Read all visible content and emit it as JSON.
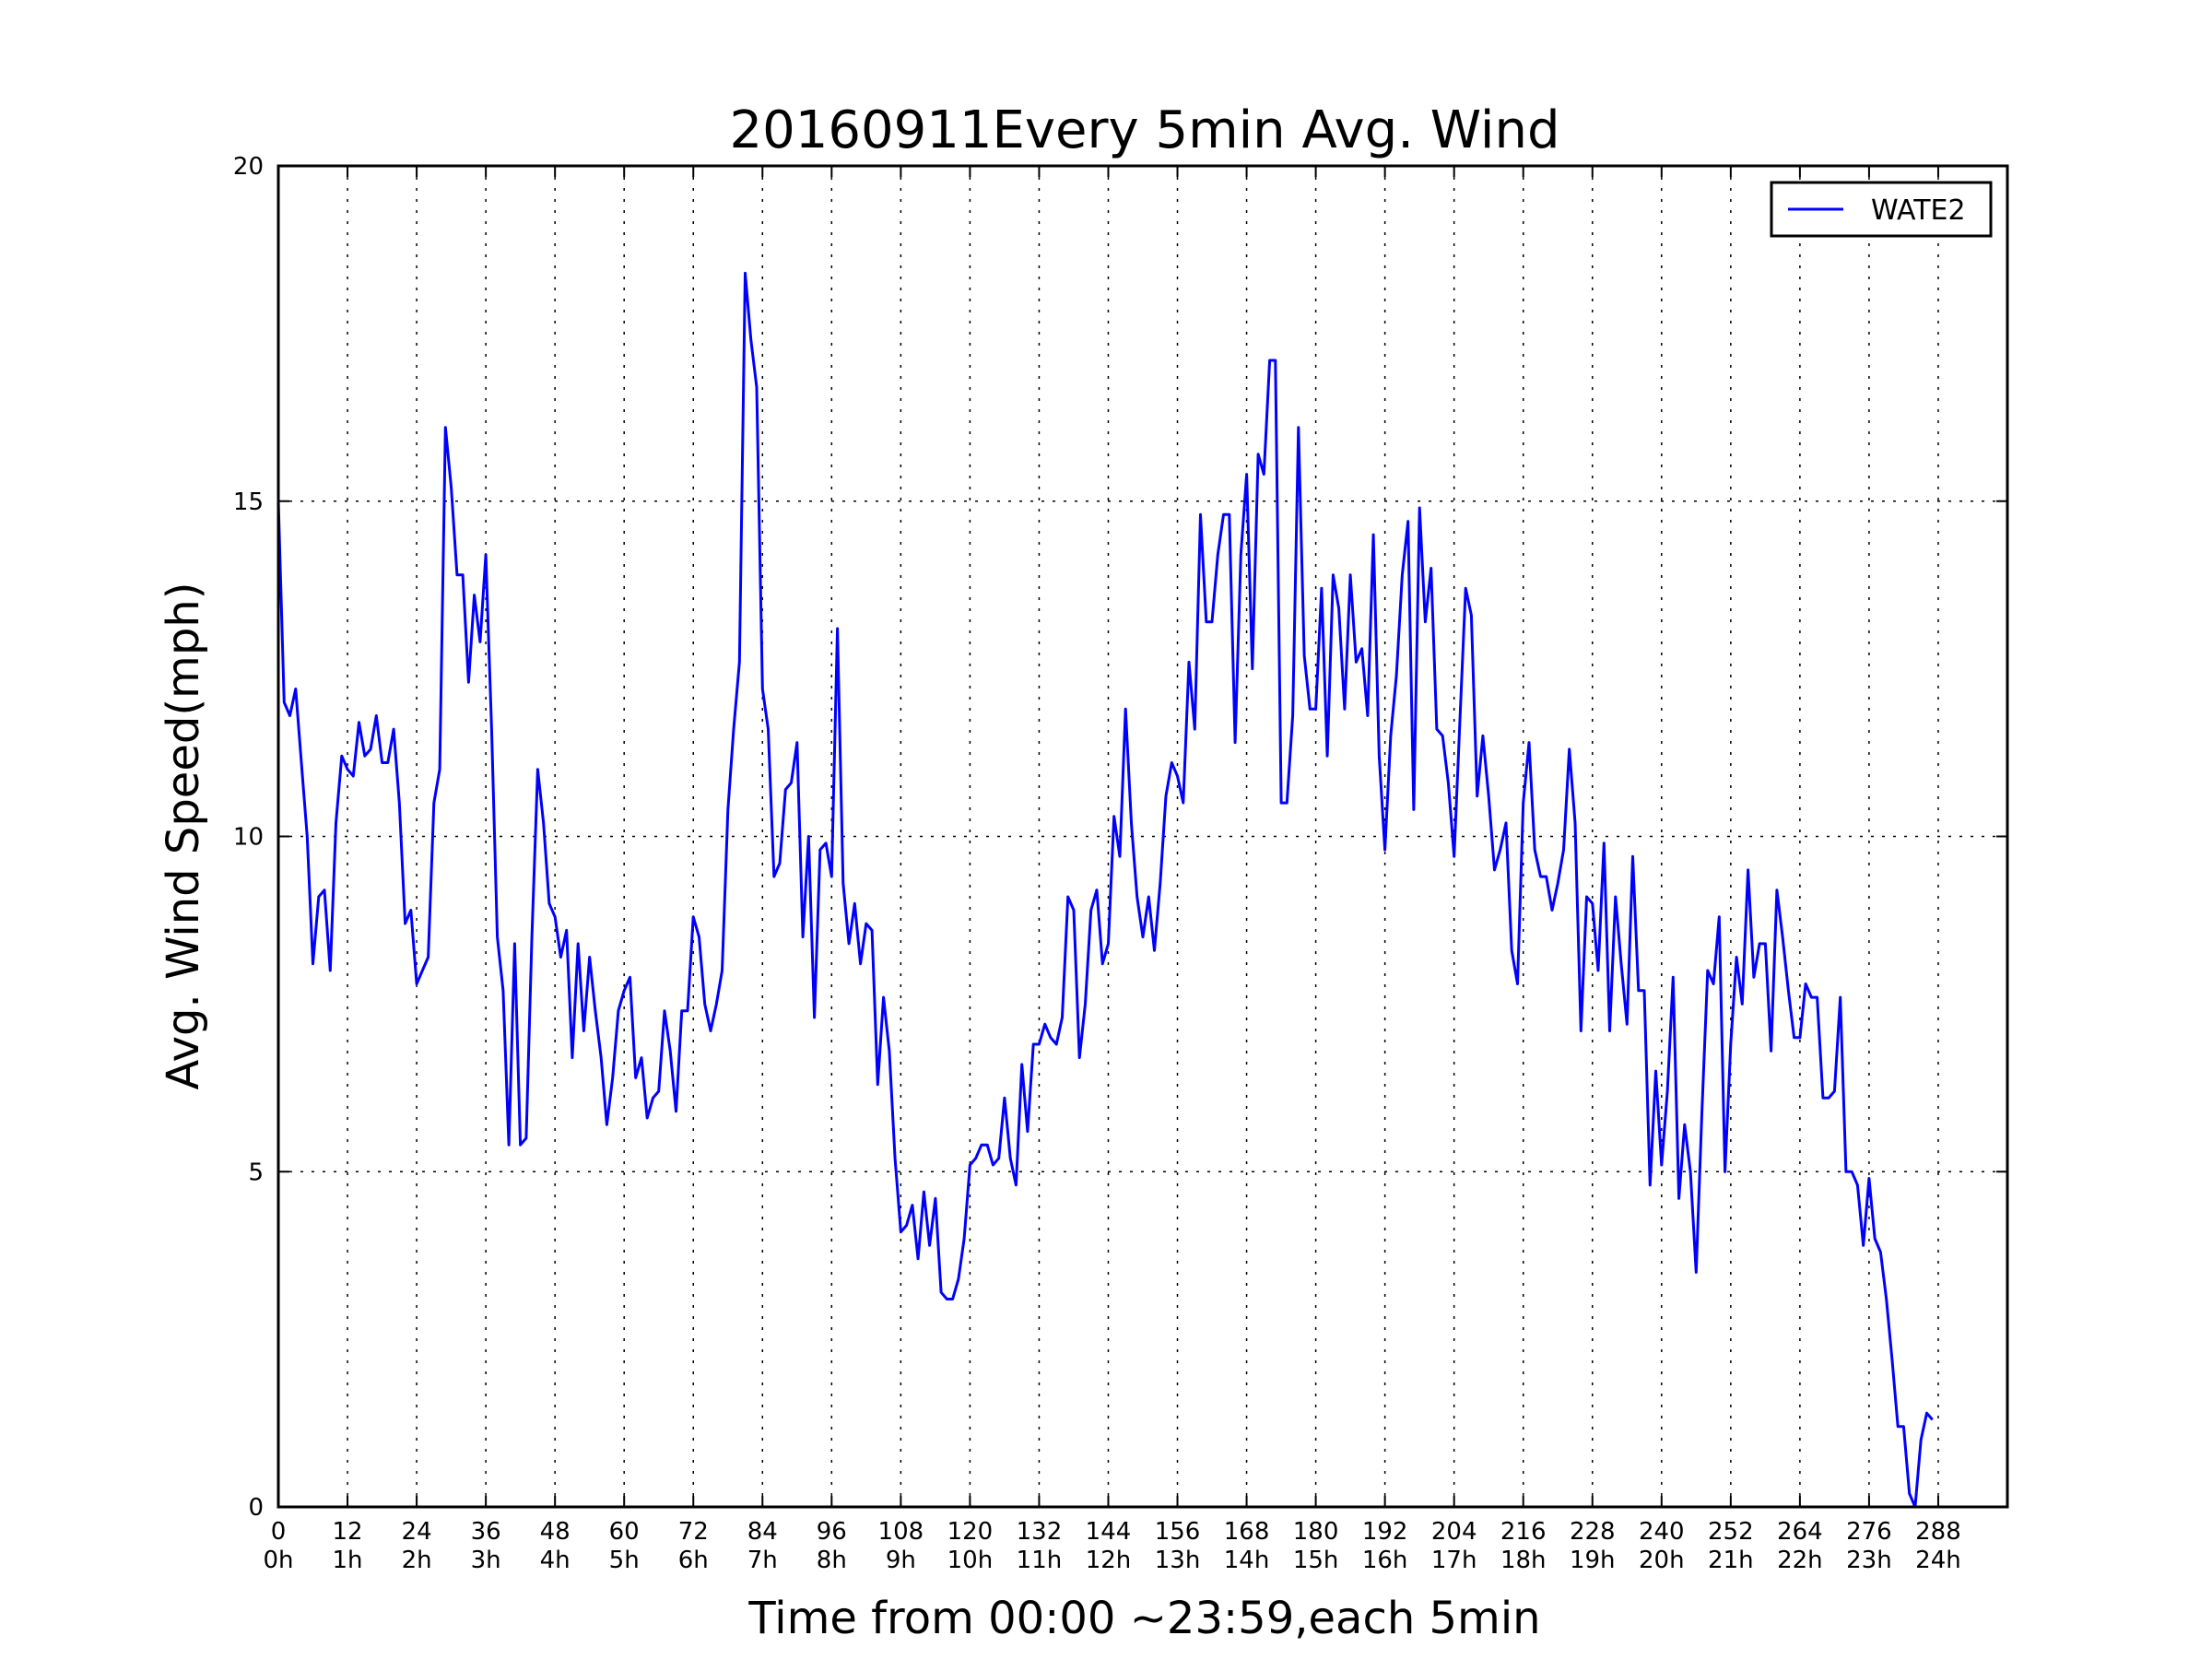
{
  "chart_data": {
    "type": "line",
    "title": "20160911Every 5min Avg. Wind",
    "xlabel": "Time from 00:00 ~23:59,each 5min",
    "ylabel": "Avg. Wind Speed(mph)",
    "xlim": [
      0,
      300
    ],
    "ylim": [
      0,
      20
    ],
    "grid": true,
    "legend_position": "top-right",
    "x_ticks": [
      0,
      12,
      24,
      36,
      48,
      60,
      72,
      84,
      96,
      108,
      120,
      132,
      144,
      156,
      168,
      180,
      192,
      204,
      216,
      228,
      240,
      252,
      264,
      276,
      288
    ],
    "x_tick_labels": [
      "0",
      "12",
      "24",
      "36",
      "48",
      "60",
      "72",
      "84",
      "96",
      "108",
      "120",
      "132",
      "144",
      "156",
      "168",
      "180",
      "192",
      "204",
      "216",
      "228",
      "240",
      "252",
      "264",
      "276",
      "288"
    ],
    "x_tick_sublabels": [
      "0h",
      "1h",
      "2h",
      "3h",
      "4h",
      "5h",
      "6h",
      "7h",
      "8h",
      "9h",
      "10h",
      "11h",
      "12h",
      "13h",
      "14h",
      "15h",
      "16h",
      "17h",
      "18h",
      "19h",
      "20h",
      "21h",
      "22h",
      "23h",
      "24h"
    ],
    "y_ticks": [
      0,
      5,
      10,
      15,
      20
    ],
    "y_tick_labels": [
      "0",
      "5",
      "10",
      "15",
      "20"
    ],
    "series": [
      {
        "name": "WATE2",
        "color": "#0000ff",
        "x": [
          0,
          1,
          2,
          3,
          4,
          5,
          6,
          7,
          8,
          9,
          10,
          11,
          12,
          13,
          14,
          15,
          16,
          17,
          18,
          19,
          20,
          21,
          22,
          23,
          24,
          25,
          26,
          27,
          28,
          29,
          30,
          31,
          32,
          33,
          34,
          35,
          36,
          37,
          38,
          39,
          40,
          41,
          42,
          43,
          44,
          45,
          46,
          47,
          48,
          49,
          50,
          51,
          52,
          53,
          54,
          55,
          56,
          57,
          58,
          59,
          60,
          61,
          62,
          63,
          64,
          65,
          66,
          67,
          68,
          69,
          70,
          71,
          72,
          73,
          74,
          75,
          76,
          77,
          78,
          79,
          80,
          81,
          82,
          83,
          84,
          85,
          86,
          87,
          88,
          89,
          90,
          91,
          92,
          93,
          94,
          95,
          96,
          97,
          98,
          99,
          100,
          101,
          102,
          103,
          104,
          105,
          106,
          107,
          108,
          109,
          110,
          111,
          112,
          113,
          114,
          115,
          116,
          117,
          118,
          119,
          120,
          121,
          122,
          123,
          124,
          125,
          126,
          127,
          128,
          129,
          130,
          131,
          132,
          133,
          134,
          135,
          136,
          137,
          138,
          139,
          140,
          141,
          142,
          143,
          144,
          145,
          146,
          147,
          148,
          149,
          150,
          151,
          152,
          153,
          154,
          155,
          156,
          157,
          158,
          159,
          160,
          161,
          162,
          163,
          164,
          165,
          166,
          167,
          168,
          169,
          170,
          171,
          172,
          173,
          174,
          175,
          176,
          177,
          178,
          179,
          180,
          181,
          182,
          183,
          184,
          185,
          186,
          187,
          188,
          189,
          190,
          191,
          192,
          193,
          194,
          195,
          196,
          197,
          198,
          199,
          200,
          201,
          202,
          203,
          204,
          205,
          206,
          207,
          208,
          209,
          210,
          211,
          212,
          213,
          214,
          215,
          216,
          217,
          218,
          219,
          220,
          221,
          222,
          223,
          224,
          225,
          226,
          227,
          228,
          229,
          230,
          231,
          232,
          233,
          234,
          235,
          236,
          237,
          238,
          239,
          240,
          241,
          242,
          243,
          244,
          245,
          246,
          247,
          248,
          249,
          250,
          251,
          252,
          253,
          254,
          255,
          256,
          257,
          258,
          259,
          260,
          261,
          262,
          263,
          264,
          265,
          266,
          267,
          268,
          269,
          270,
          271,
          272,
          273,
          274,
          275,
          276,
          277,
          278,
          279,
          280,
          281,
          282,
          283,
          284,
          285,
          286,
          287
        ],
        "values": [
          15.0,
          12.0,
          11.8,
          12.2,
          11.1,
          10.0,
          8.1,
          9.1,
          9.2,
          8.0,
          10.2,
          11.2,
          11.0,
          10.9,
          11.7,
          11.2,
          11.3,
          11.8,
          11.1,
          11.1,
          11.6,
          10.5,
          8.7,
          8.9,
          7.8,
          8.0,
          8.2,
          10.5,
          11.0,
          16.1,
          15.2,
          13.9,
          13.9,
          12.3,
          13.6,
          12.9,
          14.2,
          11.6,
          8.5,
          7.7,
          5.4,
          8.4,
          5.4,
          5.5,
          8.5,
          11.0,
          10.2,
          9.0,
          8.8,
          8.2,
          8.6,
          6.7,
          8.4,
          7.1,
          8.2,
          7.4,
          6.7,
          5.7,
          6.4,
          7.4,
          7.7,
          7.9,
          6.4,
          6.7,
          5.8,
          6.1,
          6.2,
          7.4,
          6.8,
          5.9,
          7.4,
          7.4,
          8.8,
          8.5,
          7.5,
          7.1,
          7.5,
          8.0,
          10.4,
          11.6,
          12.6,
          18.4,
          17.4,
          16.7,
          12.2,
          11.6,
          9.4,
          9.6,
          10.7,
          10.8,
          11.4,
          8.5,
          10.0,
          7.3,
          9.8,
          9.9,
          9.4,
          13.1,
          9.3,
          8.4,
          9.0,
          8.1,
          8.7,
          8.6,
          6.3,
          7.6,
          6.8,
          5.2,
          4.1,
          4.2,
          4.5,
          3.7,
          4.7,
          3.9,
          4.6,
          3.2,
          3.1,
          3.1,
          3.4,
          4.0,
          5.1,
          5.2,
          5.4,
          5.4,
          5.1,
          5.2,
          6.1,
          5.2,
          4.8,
          6.6,
          5.6,
          6.9,
          6.9,
          7.2,
          7.0,
          6.9,
          7.3,
          9.1,
          8.9,
          6.7,
          7.5,
          8.9,
          9.2,
          8.1,
          8.4,
          10.3,
          9.7,
          11.9,
          10.2,
          9.1,
          8.5,
          9.1,
          8.3,
          9.3,
          10.6,
          11.1,
          10.9,
          10.5,
          12.6,
          11.6,
          14.8,
          13.2,
          13.2,
          14.2,
          14.8,
          14.8,
          11.4,
          14.2,
          15.4,
          12.5,
          15.7,
          15.4,
          17.1,
          17.1,
          10.5,
          10.5,
          11.8,
          16.1,
          12.7,
          11.9,
          11.9,
          13.7,
          11.2,
          13.9,
          13.4,
          11.9,
          13.9,
          12.6,
          12.8,
          11.8,
          14.5,
          11.2,
          9.8,
          11.5,
          12.4,
          13.9,
          14.7,
          10.4,
          14.9,
          13.2,
          14.0,
          11.6,
          11.5,
          10.8,
          9.7,
          11.7,
          13.7,
          13.3,
          10.6,
          11.5,
          10.6,
          9.5,
          9.8,
          10.2,
          8.3,
          7.8,
          10.5,
          11.4,
          9.8,
          9.4,
          9.4,
          8.9,
          9.3,
          9.8,
          11.3,
          10.2,
          7.1,
          9.1,
          9.0,
          8.0,
          9.9,
          7.1,
          9.1,
          8.1,
          7.2,
          9.7,
          7.7,
          7.7,
          4.8,
          6.5,
          5.1,
          6.2,
          7.9,
          4.6,
          5.7,
          5.0,
          3.5,
          5.9,
          8.0,
          7.8,
          8.8,
          5.0,
          6.9,
          8.2,
          7.5,
          9.5,
          7.9,
          8.4,
          8.4,
          6.8,
          9.2,
          8.5,
          7.7,
          7.0,
          7.0,
          7.8,
          7.6,
          7.6,
          6.1,
          6.1,
          6.2,
          7.6,
          5.0,
          5.0,
          4.8,
          3.9,
          4.9,
          4.0,
          3.8,
          3.1,
          2.2,
          1.2,
          1.2,
          0.2,
          0.0,
          1.0,
          1.4,
          1.3
        ]
      }
    ]
  }
}
